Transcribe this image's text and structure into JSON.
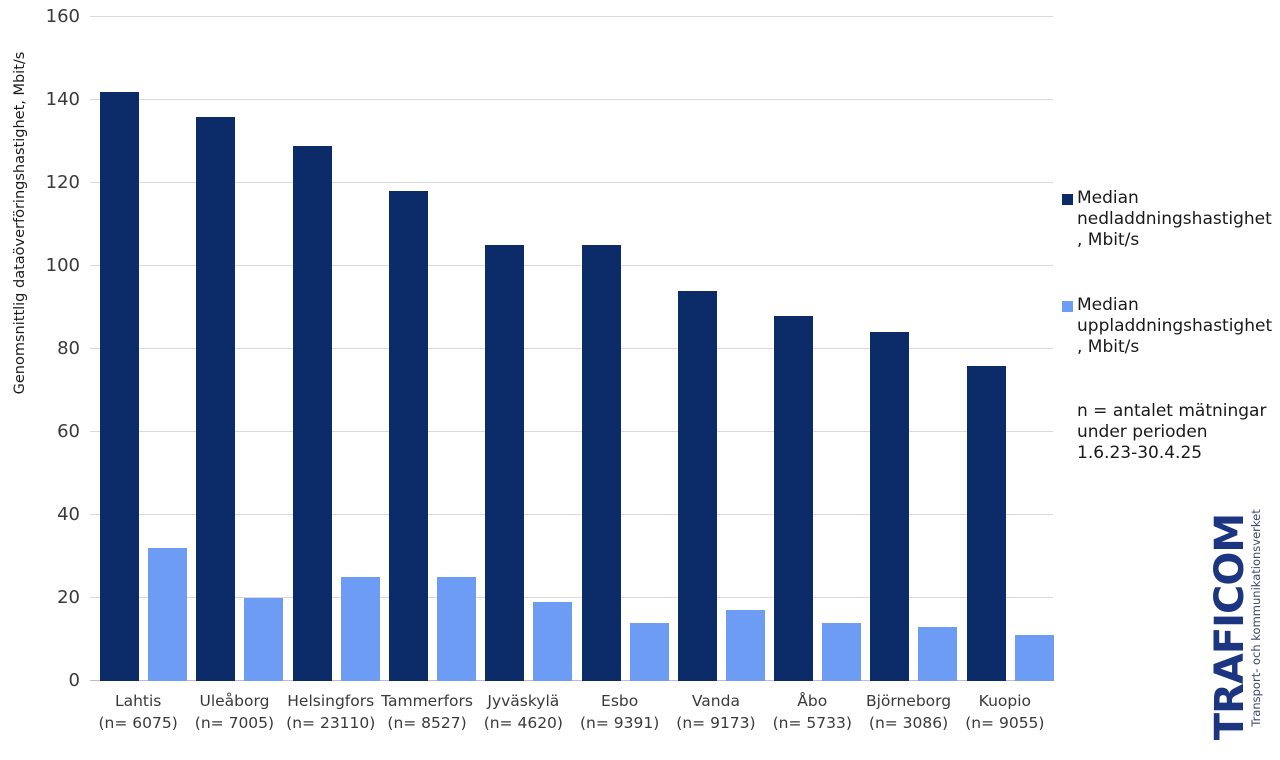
{
  "chart_data": {
    "type": "bar",
    "title": "",
    "xlabel": "",
    "ylabel": "Genomsnittlig dataöverföringshastighet, Mbit/s",
    "ylim": [
      0,
      160
    ],
    "ytick_step": 20,
    "grid": true,
    "legend_position": "right",
    "categories": [
      "Lahtis",
      "Uleåborg",
      "Helsingfors",
      "Tammerfors",
      "Jyväskylä",
      "Esbo",
      "Vanda",
      "Åbo",
      "Björneborg",
      "Kuopio"
    ],
    "n_labels": [
      "(n= 6075)",
      "(n= 7005)",
      "(n= 23110)",
      "(n= 8527)",
      "(n= 4620)",
      "(n= 9391)",
      "(n= 9173)",
      "(n= 5733)",
      "(n= 3086)",
      "(n= 9055)"
    ],
    "series": [
      {
        "name": "Median nedladdningshastighet, Mbit/s",
        "color": "#0b2b69",
        "values": [
          142,
          136,
          129,
          118,
          105,
          105,
          94,
          88,
          84,
          76
        ]
      },
      {
        "name": "Median uppladdningshastighet, Mbit/s",
        "color": "#6d9cf4",
        "values": [
          32,
          20,
          25,
          25,
          19,
          14,
          17,
          14,
          13,
          11
        ]
      }
    ]
  },
  "legend": {
    "items": [
      {
        "label": "Median nedladdningshastighet, Mbit/s",
        "color": "#0b2b69",
        "lines": [
          "Median",
          "nedladdningshastighet",
          ", Mbit/s"
        ]
      },
      {
        "label": "Median uppladdningshastighet, Mbit/s",
        "color": "#6d9cf4",
        "lines": [
          "Median",
          "uppladdningshastighet",
          ", Mbit/s"
        ]
      }
    ]
  },
  "note": {
    "text": "n = antalet mätningar under perioden 1.6.23-30.4.25",
    "lines": [
      "n = antalet mätningar",
      "under perioden",
      "1.6.23-30.4.25"
    ]
  },
  "logo": {
    "brand": "TRAFICOM",
    "tagline": "Transport- och kommunikationsverket"
  },
  "colors": {
    "download": "#0b2b69",
    "upload": "#6d9cf4",
    "gridline": "#d9d9d9",
    "axis_line": "#bfbfbf",
    "tick_text": "#3a3a3a",
    "text": "#1a1a1a",
    "logo_blue": "#1b3580"
  }
}
